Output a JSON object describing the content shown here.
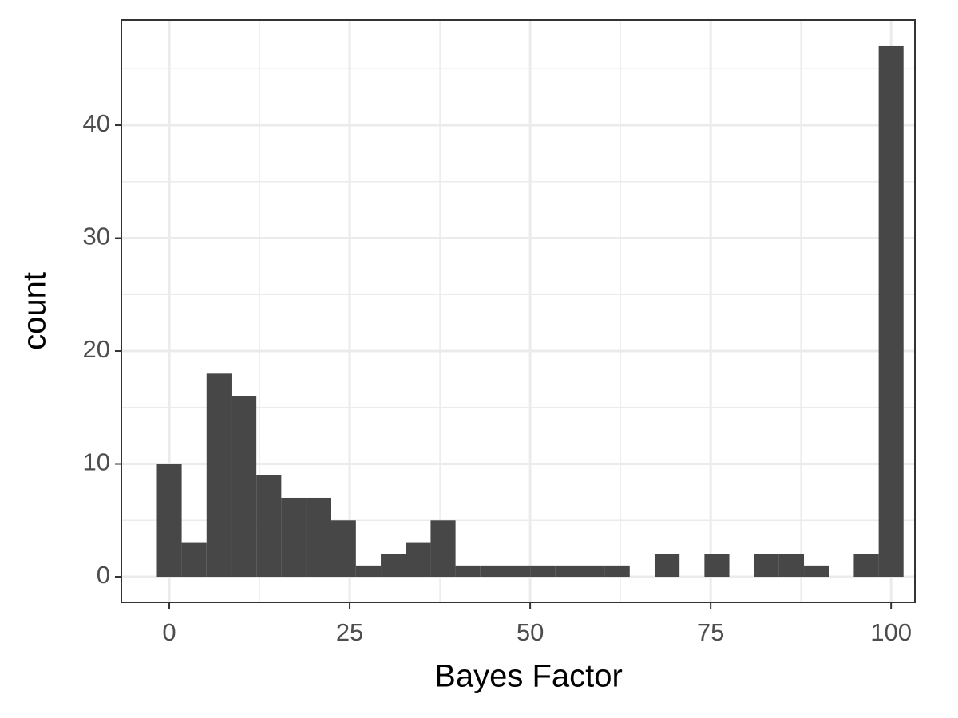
{
  "chart_data": {
    "type": "histogram",
    "x_label": "Bayes Factor",
    "y_label": "count",
    "bins": [
      -1.72,
      1.72,
      5.17,
      8.62,
      12.07,
      15.52,
      18.97,
      22.41,
      25.86,
      29.31,
      32.76,
      36.21,
      39.66,
      43.1,
      46.55,
      50.0,
      53.45,
      56.9,
      60.34,
      63.79,
      67.24,
      70.69,
      74.14,
      77.59,
      81.03,
      84.48,
      87.93,
      91.38,
      94.83,
      98.28,
      101.72
    ],
    "values": [
      10,
      3,
      18,
      16,
      9,
      7,
      7,
      5,
      1,
      2,
      3,
      5,
      1,
      1,
      1,
      1,
      1,
      1,
      1,
      0,
      2,
      0,
      2,
      0,
      2,
      2,
      1,
      0,
      2,
      47
    ],
    "color": "#474747",
    "xlim": [
      -6.64,
      103.3
    ],
    "ylim": [
      -2.26,
      49.33
    ],
    "xticks": [
      0,
      25,
      50,
      75,
      100
    ],
    "yticks": [
      0,
      10,
      20,
      30,
      40
    ],
    "grid": true,
    "minor_grid": true
  }
}
